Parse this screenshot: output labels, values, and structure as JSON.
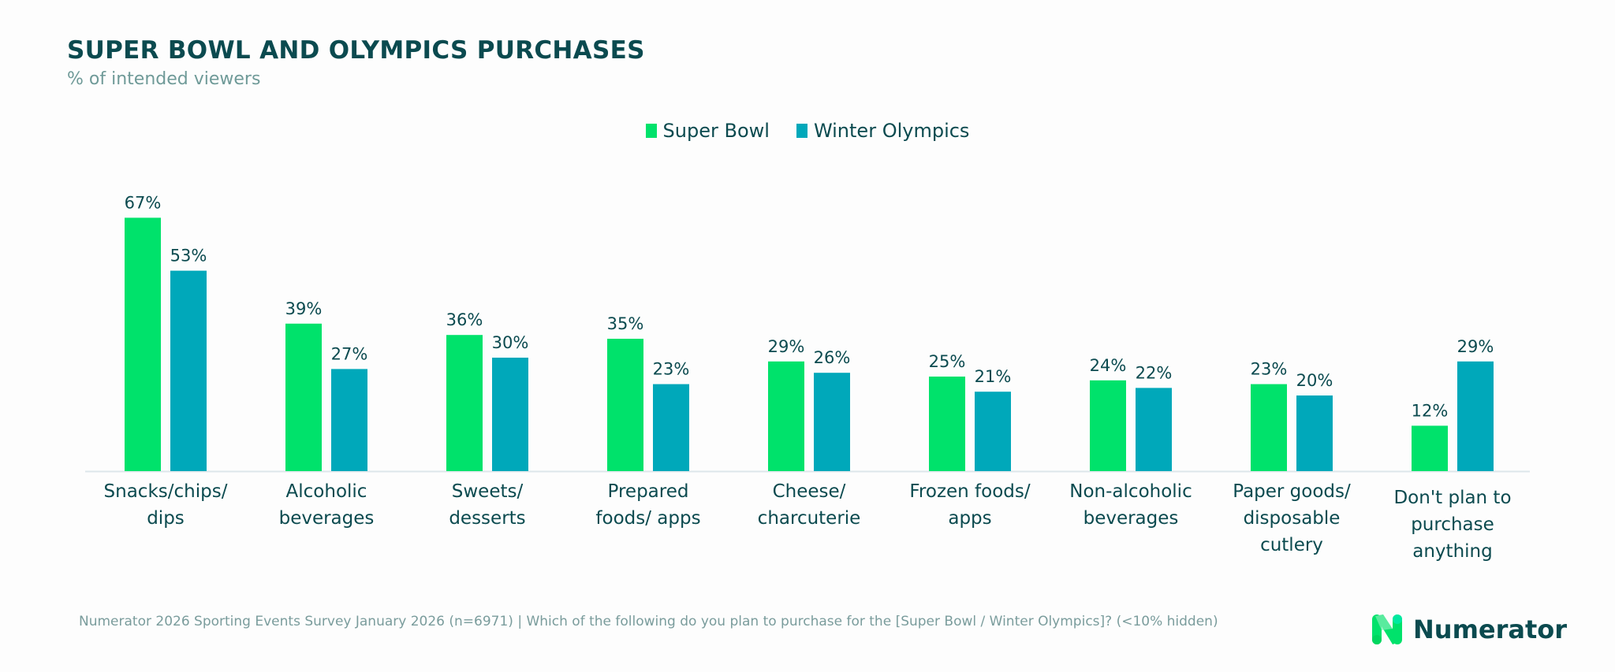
{
  "title": "SUPER BOWL AND OLYMPICS PURCHASES",
  "subtitle": "% of intended viewers",
  "footer": "Numerator 2026 Sporting Events Survey January 2026 (n=6971) | Which of the following do you plan to purchase for the [Super Bowl / Winter Olympics]? (<10% hidden)",
  "logo": {
    "text": "Numerator",
    "icon": "numerator-n-logo-icon"
  },
  "colors": {
    "super_bowl": "#00E26B",
    "winter_olympics": "#00A8BA",
    "text": "#0b4a4f"
  },
  "chart_data": {
    "type": "bar",
    "title": "SUPER BOWL AND OLYMPICS PURCHASES",
    "subtitle": "% of intended viewers",
    "legend_placement": "top-center",
    "grid": false,
    "ylim": [
      0,
      70
    ],
    "categories": [
      [
        "Snacks/chips/",
        "dips"
      ],
      [
        "Alcoholic",
        "beverages"
      ],
      [
        "Sweets/",
        "desserts"
      ],
      [
        "Prepared",
        "foods/ apps"
      ],
      [
        "Cheese/",
        "charcuterie"
      ],
      [
        "Frozen foods/",
        "apps"
      ],
      [
        "Non-alcoholic",
        "beverages"
      ],
      [
        "Paper goods/",
        "disposable",
        "cutlery"
      ],
      [
        "Don't plan to",
        "purchase",
        "anything"
      ]
    ],
    "series": [
      {
        "name": "Super Bowl",
        "values": [
          67,
          39,
          36,
          35,
          29,
          25,
          24,
          23,
          12
        ]
      },
      {
        "name": "Winter Olympics",
        "values": [
          53,
          27,
          30,
          23,
          26,
          21,
          22,
          20,
          29
        ]
      }
    ]
  }
}
